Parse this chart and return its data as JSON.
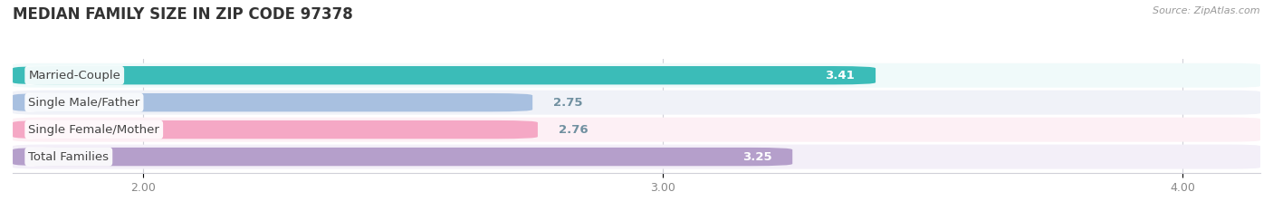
{
  "title": "MEDIAN FAMILY SIZE IN ZIP CODE 97378",
  "source": "Source: ZipAtlas.com",
  "categories": [
    "Married-Couple",
    "Single Male/Father",
    "Single Female/Mother",
    "Total Families"
  ],
  "values": [
    3.41,
    2.75,
    2.76,
    3.25
  ],
  "bar_colors": [
    "#3bbcb8",
    "#a8c0e0",
    "#f5a8c5",
    "#b59fcb"
  ],
  "bar_bg_color": "#e8e8ee",
  "xlim_data": [
    1.75,
    4.15
  ],
  "xmin": 1.75,
  "xmax": 4.15,
  "xticks": [
    2.0,
    3.0,
    4.0
  ],
  "xtick_labels": [
    "2.00",
    "3.00",
    "4.00"
  ],
  "label_fontsize": 9.5,
  "value_fontsize": 9.5,
  "title_fontsize": 12,
  "background_color": "#ffffff",
  "bar_height": 0.68,
  "row_bg_colors": [
    "#f0fafa",
    "#f0f2f8",
    "#fdf0f5",
    "#f3eff8"
  ],
  "value_color_outside": "#7090a0",
  "value_color_inside": "#ffffff",
  "label_text_color": "#444444",
  "grid_color": "#d0d0d8",
  "spine_color": "#d0d0d8"
}
